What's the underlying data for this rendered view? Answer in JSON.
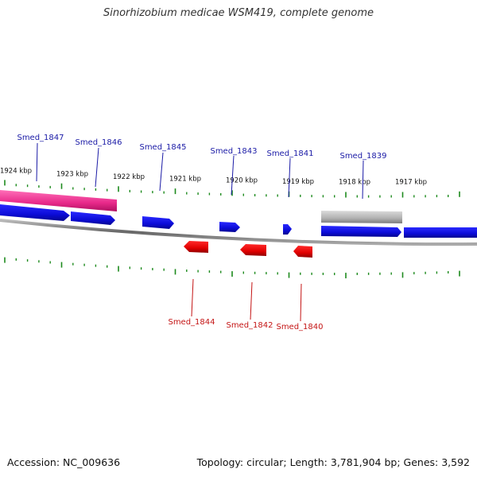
{
  "title": "Sinorhizobium medicae WSM419, complete genome",
  "footer": {
    "accession": "Accession: NC_009636",
    "summary": "Topology: circular; Length: 3,781,904 bp; Genes: 3,592"
  },
  "colors": {
    "forward_gene": "#1010e0",
    "reverse_gene": "#e00000",
    "highlight": "#e8298a",
    "pseudo_gene": "#b0b0b0",
    "tick": "#1d8a1d",
    "backbone": "#888888",
    "forward_label": "#1a1aa6",
    "reverse_label": "#c41414"
  },
  "scale_labels": [
    "1924 kbp",
    "1923 kbp",
    "1922 kbp",
    "1921 kbp",
    "1920 kbp",
    "1919 kbp",
    "1918 kbp",
    "1917 kbp"
  ],
  "forward_genes": [
    {
      "label": "Smed_1847"
    },
    {
      "label": "Smed_1846"
    },
    {
      "label": "Smed_1845"
    },
    {
      "label": "Smed_1843"
    },
    {
      "label": "Smed_1841"
    },
    {
      "label": "Smed_1839"
    }
  ],
  "reverse_genes": [
    {
      "label": "Smed_1844"
    },
    {
      "label": "Smed_1842"
    },
    {
      "label": "Smed_1840"
    }
  ]
}
